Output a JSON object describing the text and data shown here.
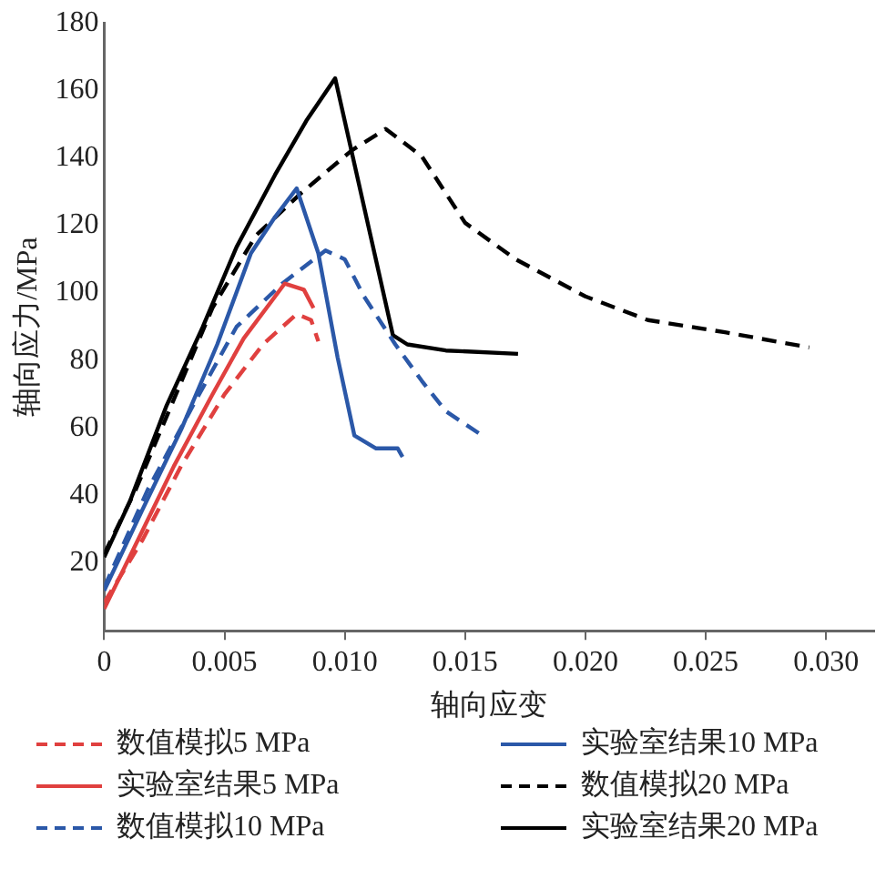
{
  "chart_data": {
    "type": "line",
    "xlabel": "轴向应变",
    "ylabel": "轴向应力/MPa",
    "xlim": [
      0,
      0.032
    ],
    "ylim": [
      0,
      180
    ],
    "xticks": [
      0,
      {
        "value": 0.005,
        "label": "0.005"
      },
      {
        "value": 0.01,
        "label": "0.010"
      },
      {
        "value": 0.015,
        "label": "0.015"
      },
      {
        "value": 0.02,
        "label": "0.020"
      },
      {
        "value": 0.025,
        "label": "0.025"
      },
      {
        "value": 0.03,
        "label": "0.030"
      }
    ],
    "yticks": [
      20,
      40,
      60,
      80,
      100,
      120,
      140,
      160,
      180
    ],
    "grid": false,
    "legend": "bottom",
    "marker": "none",
    "series": [
      {
        "name": "数值模拟5 MPa",
        "color": "#e0403f",
        "line_style": "dashed",
        "x": [
          0,
          0.0016,
          0.0032,
          0.005,
          0.0066,
          0.008,
          0.0086,
          0.0089
        ],
        "values": [
          8.3,
          27,
          48.8,
          70,
          84.8,
          93.8,
          92,
          85.7
        ]
      },
      {
        "name": "实验室结果5 MPa",
        "color": "#e0403f",
        "line_style": "solid",
        "x": [
          0,
          0.0013,
          0.0029,
          0.0045,
          0.0058,
          0.0075,
          0.0083,
          0.0087
        ],
        "values": [
          6.5,
          25.4,
          48.8,
          70,
          86.6,
          102.8,
          101,
          95.6
        ]
      },
      {
        "name": "数值模拟10 MPa",
        "color": "#2b58a8",
        "line_style": "dashed",
        "x": [
          0,
          0.0018,
          0.0037,
          0.0055,
          0.0074,
          0.0092,
          0.01,
          0.0108,
          0.0121,
          0.0132,
          0.0142,
          0.0158
        ],
        "values": [
          12.8,
          41.6,
          66.8,
          90,
          102.8,
          112.6,
          110,
          99,
          84.8,
          74,
          65,
          57.4
        ]
      },
      {
        "name": "实验室结果10 MPa",
        "color": "#2b58a8",
        "line_style": "solid",
        "x": [
          0,
          0.0016,
          0.0032,
          0.0047,
          0.0061,
          0.0071,
          0.008,
          0.0089,
          0.0097,
          0.0104,
          0.0113,
          0.0122,
          0.0124
        ],
        "values": [
          11.9,
          36,
          59.6,
          84.8,
          111.8,
          122.5,
          131,
          111.8,
          81,
          57.8,
          54,
          54,
          51.5
        ]
      },
      {
        "name": "数值模拟20 MPa",
        "color": "#000000",
        "line_style": "dashed",
        "x": [
          0,
          0.0013,
          0.0029,
          0.0045,
          0.0063,
          0.0082,
          0.0103,
          0.0117,
          0.0132,
          0.015,
          0.0171,
          0.02,
          0.0226,
          0.0258,
          0.0293
        ],
        "values": [
          22.7,
          41.6,
          68.6,
          95.6,
          117,
          129.7,
          142.3,
          148.6,
          140.5,
          120.8,
          110,
          99,
          92,
          88.4,
          83.9
        ]
      },
      {
        "name": "实验室结果20 MPa",
        "color": "#000000",
        "line_style": "solid",
        "x": [
          0,
          0.00105,
          0.0026,
          0.0041,
          0.0055,
          0.0071,
          0.0084,
          0.0096,
          0.012,
          0.0126,
          0.0142,
          0.0172
        ],
        "values": [
          21.8,
          38,
          66.8,
          90,
          113.6,
          135,
          151,
          163.6,
          87.5,
          84.8,
          83,
          82
        ]
      }
    ]
  }
}
